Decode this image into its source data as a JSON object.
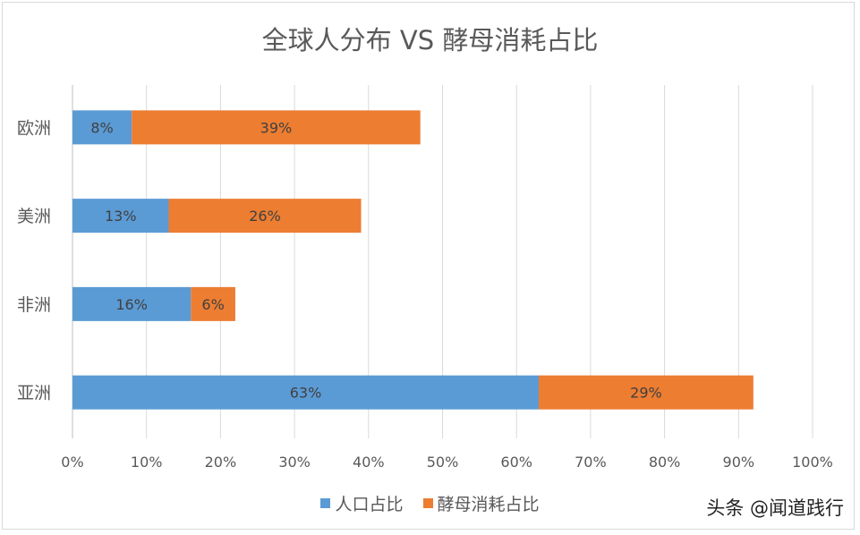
{
  "chart_data": {
    "type": "bar",
    "orientation": "horizontal",
    "stacked": true,
    "title": "全球人分布 VS 酵母消耗占比",
    "categories": [
      "欧洲",
      "美洲",
      "非洲",
      "亚洲"
    ],
    "series": [
      {
        "name": "人口占比",
        "values": [
          8,
          13,
          16,
          63
        ],
        "labels": [
          "8%",
          "13%",
          "16%",
          "63%"
        ],
        "color": "#5b9bd5"
      },
      {
        "name": "酵母消耗占比",
        "values": [
          39,
          26,
          6,
          29
        ],
        "labels": [
          "39%",
          "26%",
          "6%",
          "29%"
        ],
        "color": "#ed7d31"
      }
    ],
    "xlim": [
      0,
      100
    ],
    "xticks": [
      "0%",
      "10%",
      "20%",
      "30%",
      "40%",
      "50%",
      "60%",
      "70%",
      "80%",
      "90%",
      "100%"
    ],
    "grid": true,
    "legend": "bottom"
  },
  "watermark": "头条 @闻道践行"
}
